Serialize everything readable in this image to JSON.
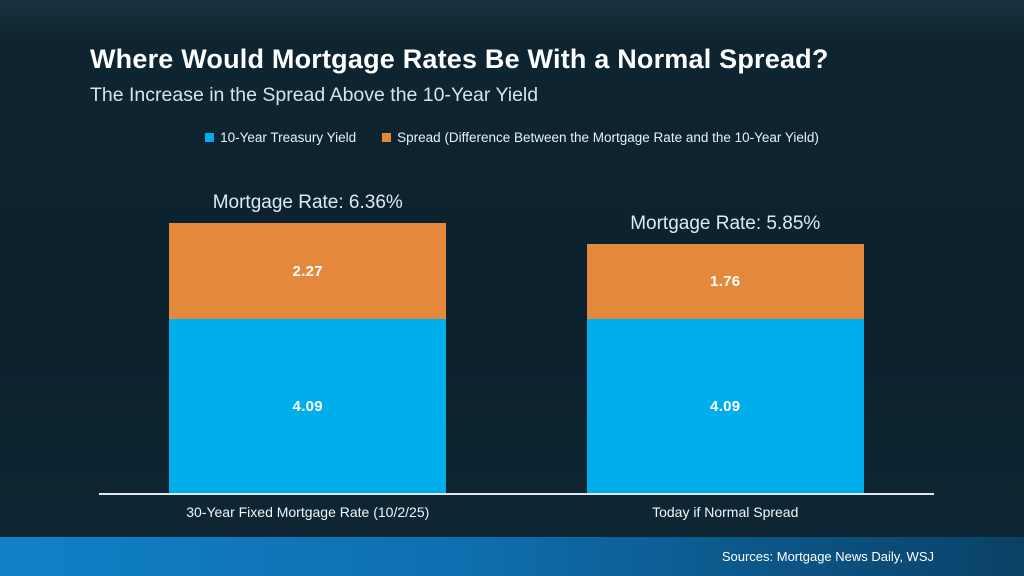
{
  "slide": {
    "title": "Where Would Mortgage Rates Be With a Normal Spread?",
    "subtitle": "The Increase in the Spread Above the 10-Year Yield",
    "source": "Sources: Mortgage News Daily, WSJ"
  },
  "colors": {
    "treasury_blue": "#00AEEB",
    "spread_orange": "#E4893C",
    "background_dark_navy": "#0C212E",
    "axis_line": "#DDE6EB",
    "footer_gradient_left": "#1181C7",
    "footer_gradient_right": "#0A4166",
    "text_white": "#FFFFFF"
  },
  "chart_data": {
    "type": "bar",
    "stacked": true,
    "title": "Where Would Mortgage Rates Be With a Normal Spread?",
    "subtitle": "The Increase in the Spread Above the 10-Year Yield",
    "categories": [
      "30-Year Fixed Mortgage Rate (10/2/25)",
      "Today if Normal Spread"
    ],
    "series": [
      {
        "name": "10-Year Treasury Yield",
        "color": "#00AEEB",
        "values": [
          4.09,
          4.09
        ]
      },
      {
        "name": "Spread (Difference Between the Mortgage Rate and the 10-Year Yield)",
        "color": "#E4893C",
        "values": [
          2.27,
          1.76
        ]
      }
    ],
    "totals": [
      6.36,
      5.85
    ],
    "totals_labels": [
      "Mortgage Rate: 6.36%",
      "Mortgage Rate: 5.85%"
    ],
    "value_labels": {
      "treasury": [
        "4.09",
        "4.09"
      ],
      "spread": [
        "2.27",
        "1.76"
      ]
    },
    "ylim": [
      0,
      7
    ],
    "grid": false,
    "legend_position": "top",
    "y_axis_hidden": true
  }
}
